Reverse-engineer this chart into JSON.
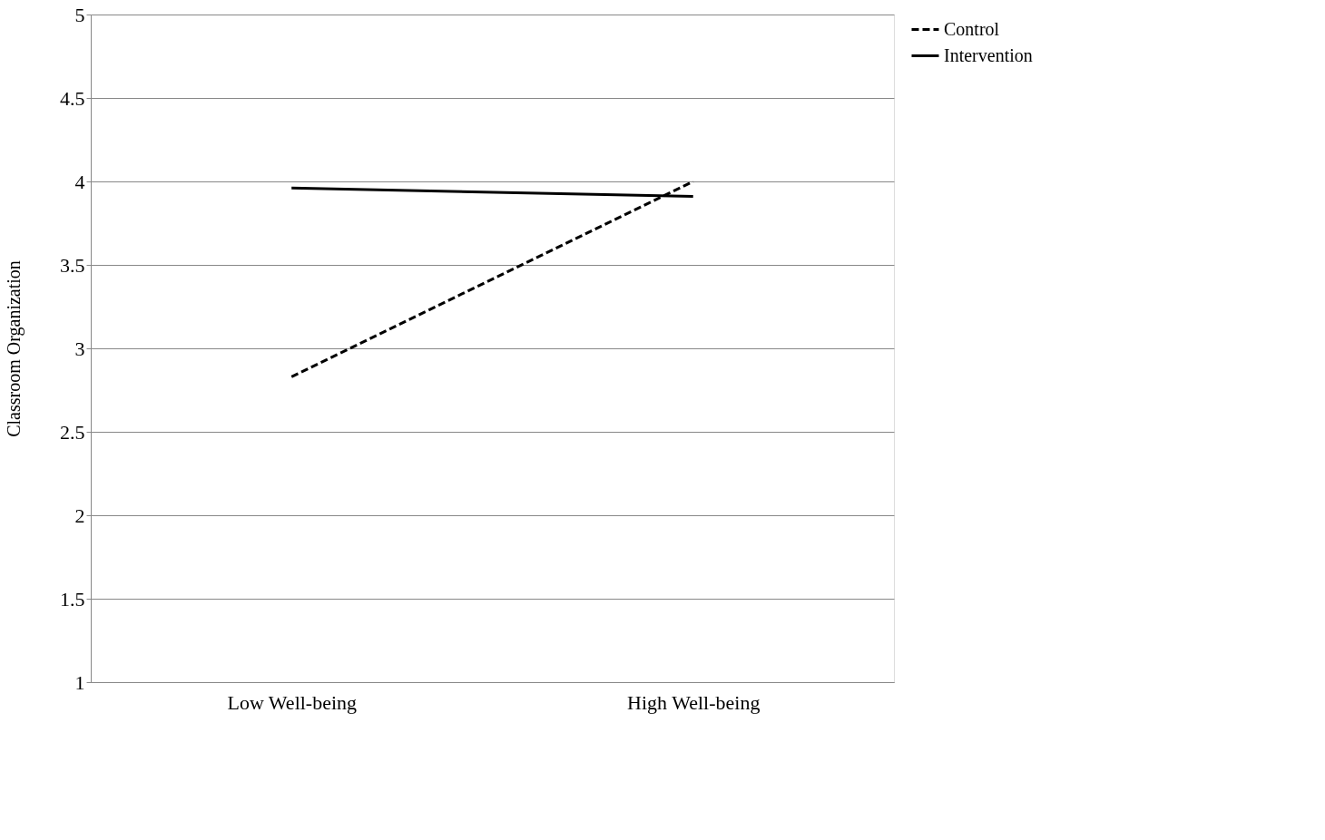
{
  "chart_data": {
    "type": "line",
    "ylabel": "Classroom Organization",
    "categories": [
      "Low Well-being",
      "High Well-being"
    ],
    "series": [
      {
        "name": "Control",
        "color": "#000000",
        "line_style": "dashed",
        "values": [
          2.83,
          4.0
        ]
      },
      {
        "name": "Intervention",
        "color": "#000000",
        "line_style": "solid",
        "values": [
          3.96,
          3.91
        ]
      }
    ],
    "ylim": [
      1,
      5
    ],
    "yticks": [
      1,
      1.5,
      2,
      2.5,
      3,
      3.5,
      4,
      4.5,
      5
    ],
    "grid": "y",
    "legend": "right",
    "marker": "none"
  }
}
